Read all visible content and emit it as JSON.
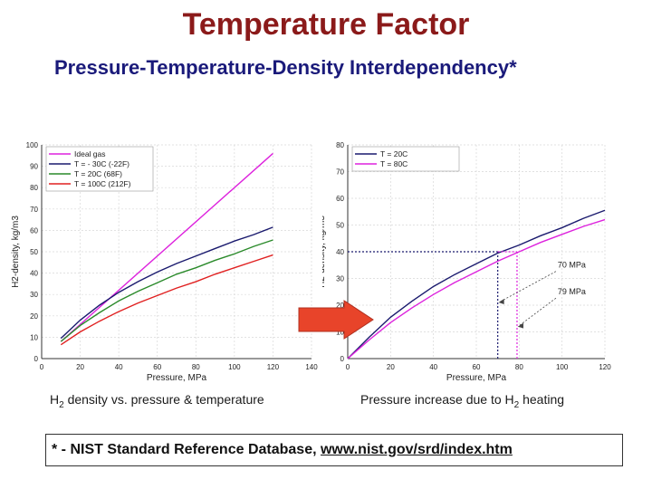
{
  "title": "Temperature Factor",
  "subtitle": "Pressure-Temperature-Density Interdependency*",
  "captions": {
    "left_pre": "H",
    "left_sub": "2",
    "left_post": " density vs. pressure & temperature",
    "right_pre": "Pressure increase due to H",
    "right_sub": "2",
    "right_post": " heating"
  },
  "footnote": {
    "prefix": "* - NIST Standard Reference Database, ",
    "link": "www.nist.gov/srd/index.htm"
  },
  "colors": {
    "title": "#8b1a1a",
    "subtitle": "#1a1a7a",
    "ideal": "#dd22dd",
    "minus30": "#1a1a6e",
    "plus20": "#2a8a2a",
    "plus100": "#e02020",
    "arrow": "#e8442a"
  },
  "chart_data": [
    {
      "type": "line",
      "title": "",
      "xlabel": "Pressure, MPa",
      "ylabel": "H2-density, kg/m3",
      "xlim": [
        0,
        140
      ],
      "ylim": [
        0,
        100
      ],
      "xticks": [
        0,
        20,
        40,
        60,
        80,
        100,
        120,
        140
      ],
      "yticks": [
        0,
        10,
        20,
        30,
        40,
        50,
        60,
        70,
        80,
        90,
        100
      ],
      "legend_position": "top-left",
      "series": [
        {
          "name": "Ideal gas",
          "color": "#dd22dd",
          "x": [
            10,
            120
          ],
          "y": [
            8,
            96
          ]
        },
        {
          "name": "T = - 30C (-22F)",
          "color": "#1a1a6e",
          "x": [
            10,
            20,
            30,
            40,
            50,
            60,
            70,
            80,
            90,
            100,
            110,
            120
          ],
          "y": [
            9.5,
            18,
            25,
            31,
            36,
            40.5,
            44.5,
            48,
            51.5,
            55,
            58,
            61.5
          ]
        },
        {
          "name": "T = 20C (68F)",
          "color": "#2a8a2a",
          "x": [
            10,
            20,
            30,
            40,
            50,
            60,
            70,
            80,
            90,
            100,
            110,
            120
          ],
          "y": [
            8,
            15.5,
            21.5,
            27,
            31.5,
            35.5,
            39.5,
            42.5,
            46,
            49,
            52.5,
            55.5
          ]
        },
        {
          "name": "T = 100C (212F)",
          "color": "#e02020",
          "x": [
            10,
            20,
            30,
            40,
            50,
            60,
            70,
            80,
            90,
            100,
            110,
            120
          ],
          "y": [
            6.5,
            12.5,
            17.5,
            22,
            26,
            29.5,
            33,
            36,
            39.5,
            42.5,
            45.5,
            48.5
          ]
        }
      ]
    },
    {
      "type": "line",
      "title": "",
      "xlabel": "Pressure, MPa",
      "ylabel": "H2-density, kg/m3",
      "xlim": [
        0,
        120
      ],
      "ylim": [
        0,
        80
      ],
      "xticks": [
        0,
        20,
        40,
        60,
        80,
        100,
        120
      ],
      "yticks": [
        0,
        10,
        20,
        30,
        40,
        50,
        60,
        70,
        80
      ],
      "legend_position": "top-left",
      "series": [
        {
          "name": "T = 20C",
          "color": "#1a1a6e",
          "x": [
            0,
            10,
            20,
            30,
            40,
            50,
            60,
            70,
            80,
            90,
            100,
            110,
            120
          ],
          "y": [
            0,
            8,
            15.5,
            21.5,
            27,
            31.5,
            35.5,
            39.5,
            42.5,
            46,
            49,
            52.5,
            55.5
          ]
        },
        {
          "name": "T = 80C",
          "color": "#dd22dd",
          "x": [
            0,
            10,
            20,
            30,
            40,
            50,
            60,
            70,
            80,
            90,
            100,
            110,
            120
          ],
          "y": [
            0,
            7,
            13.5,
            19,
            24,
            28.5,
            32.5,
            36.5,
            40,
            43.5,
            46.5,
            49.5,
            52
          ]
        }
      ],
      "reference_density": 40,
      "annotations": [
        {
          "text": "70 MPa",
          "x": 70,
          "y": 40
        },
        {
          "text": "79 MPa",
          "x": 79,
          "y": 40
        }
      ]
    }
  ]
}
